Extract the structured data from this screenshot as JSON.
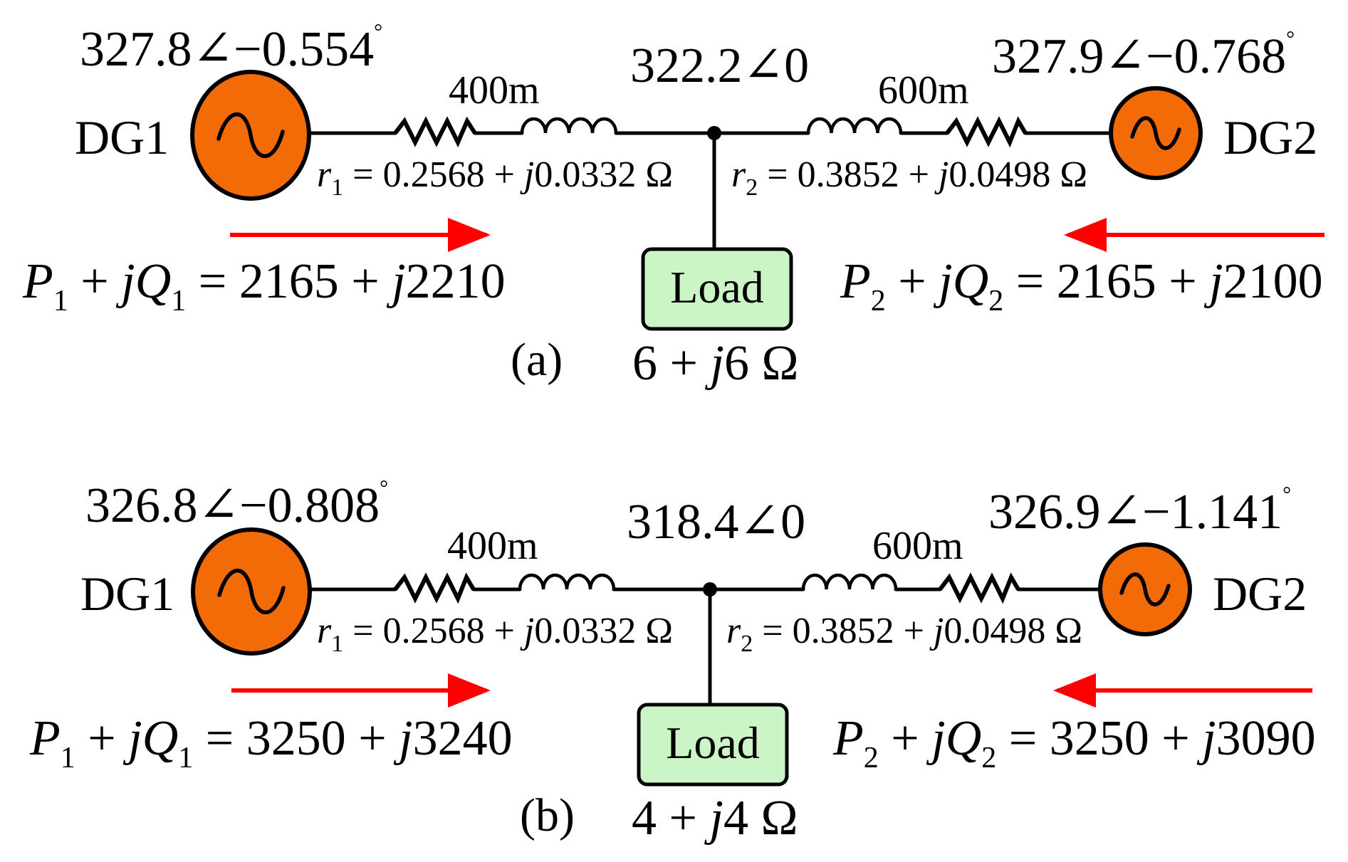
{
  "colors": {
    "generator_fill": "#f26b06",
    "load_fill": "#ccf5c7",
    "arrow": "#ff0000",
    "line": "#000000"
  },
  "icons": {
    "generator": "ac-source-sine-icon",
    "resistor": "resistor-zigzag-icon",
    "inductor": "inductor-coil-icon",
    "arrow": "power-flow-arrow-icon"
  },
  "panels": [
    {
      "id": "a",
      "label": "(a)",
      "dg1": {
        "name": "DG1",
        "voltage": "327.8∠−0.554",
        "deg": "°"
      },
      "dg2": {
        "name": "DG2",
        "voltage": "327.9∠−0.768",
        "deg": "°"
      },
      "bus_voltage": "322.2∠0",
      "line1": {
        "length": "400m",
        "r": "r",
        "sub": "1",
        "impedance": " = 0.2568 + ",
        "j": "j",
        "imag": "0.0332 Ω"
      },
      "line2": {
        "length": "600m",
        "r": "r",
        "sub": "2",
        "impedance": " = 0.3852 + ",
        "j": "j",
        "imag": "0.0498 Ω"
      },
      "load": {
        "label": "Load",
        "re": "6 + ",
        "j": "j",
        "im": "6 Ω"
      },
      "pq1": {
        "P": "P",
        "s1": "1",
        "plus": " + ",
        "j": "jQ",
        "s2": "1",
        "val": " = 2165 + ",
        "j2": "j",
        "v2": "2210"
      },
      "pq2": {
        "P": "P",
        "s1": "2",
        "plus": " + ",
        "j": "jQ",
        "s2": "2",
        "val": " = 2165 + ",
        "j2": "j",
        "v2": "2100"
      }
    },
    {
      "id": "b",
      "label": "(b)",
      "dg1": {
        "name": "DG1",
        "voltage": "326.8∠−0.808",
        "deg": "°"
      },
      "dg2": {
        "name": "DG2",
        "voltage": "326.9∠−1.141",
        "deg": "°"
      },
      "bus_voltage": "318.4∠0",
      "line1": {
        "length": "400m",
        "r": "r",
        "sub": "1",
        "impedance": " = 0.2568 + ",
        "j": "j",
        "imag": "0.0332 Ω"
      },
      "line2": {
        "length": "600m",
        "r": "r",
        "sub": "2",
        "impedance": " = 0.3852 + ",
        "j": "j",
        "imag": "0.0498 Ω"
      },
      "load": {
        "label": "Load",
        "re": "4 + ",
        "j": "j",
        "im": "4 Ω"
      },
      "pq1": {
        "P": "P",
        "s1": "1",
        "plus": " + ",
        "j": "jQ",
        "s2": "1",
        "val": " = 3250 + ",
        "j2": "j",
        "v2": "3240"
      },
      "pq2": {
        "P": "P",
        "s1": "2",
        "plus": " + ",
        "j": "jQ",
        "s2": "2",
        "val": " = 3250 + ",
        "j2": "j",
        "v2": "3090"
      }
    }
  ]
}
